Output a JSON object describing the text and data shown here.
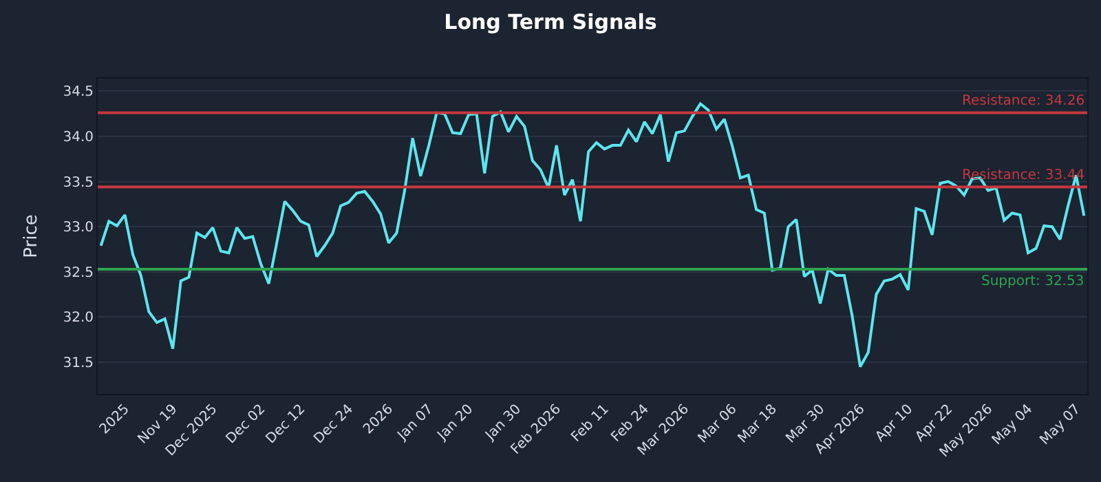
{
  "chart_data": {
    "type": "line",
    "title": "Long Term Signals",
    "ylabel": "Price",
    "categories": [
      null,
      null,
      null,
      "2025",
      null,
      null,
      null,
      null,
      null,
      "Nov 19",
      null,
      null,
      null,
      null,
      "Dec 2025",
      null,
      null,
      null,
      null,
      null,
      "Dec 02",
      null,
      null,
      null,
      null,
      "Dec 12",
      null,
      null,
      null,
      null,
      null,
      "Dec 24",
      null,
      null,
      null,
      null,
      "2026",
      null,
      null,
      null,
      null,
      "Jan 07",
      null,
      null,
      null,
      null,
      "Jan 20",
      null,
      null,
      null,
      null,
      null,
      "Jan 30",
      null,
      null,
      null,
      null,
      "Feb 2026",
      null,
      null,
      null,
      null,
      null,
      "Feb 11",
      null,
      null,
      null,
      null,
      "Feb 24",
      null,
      null,
      null,
      null,
      "Mar 2026",
      null,
      null,
      null,
      null,
      null,
      "Mar 06",
      null,
      null,
      null,
      null,
      "Mar 18",
      null,
      null,
      null,
      null,
      null,
      "Mar 30",
      null,
      null,
      null,
      null,
      "Apr 2026",
      null,
      null,
      null,
      null,
      null,
      "Apr 10",
      null,
      null,
      null,
      null,
      "Apr 22",
      null,
      null,
      null,
      null,
      "May 2026",
      null,
      null,
      null,
      null,
      "May 04",
      null,
      null,
      null,
      null,
      null,
      "May 07",
      null
    ],
    "series": [
      {
        "color": "#5ce6ee",
        "values": [
          32.79,
          33.06,
          33.01,
          33.13,
          32.69,
          32.46,
          32.06,
          31.94,
          31.98,
          31.65,
          32.4,
          32.44,
          32.93,
          32.88,
          32.99,
          32.73,
          32.71,
          32.99,
          32.87,
          32.89,
          32.59,
          32.37,
          32.82,
          33.28,
          33.18,
          33.06,
          33.02,
          32.67,
          32.79,
          32.93,
          33.23,
          33.27,
          33.37,
          33.39,
          33.28,
          33.14,
          32.82,
          32.93,
          33.4,
          33.98,
          33.56,
          33.89,
          34.26,
          34.25,
          34.04,
          34.03,
          34.24,
          34.25,
          33.59,
          34.22,
          34.27,
          34.05,
          34.22,
          34.11,
          33.73,
          33.63,
          33.43,
          33.9,
          33.35,
          33.52,
          33.06,
          33.83,
          33.93,
          33.86,
          33.9,
          33.9,
          34.07,
          33.94,
          34.16,
          34.03,
          34.24,
          33.72,
          34.04,
          34.06,
          34.22,
          34.36,
          34.29,
          34.08,
          34.19,
          33.89,
          33.54,
          33.57,
          33.19,
          33.15,
          32.52,
          32.54,
          33.0,
          33.08,
          32.45,
          32.52,
          32.15,
          32.53,
          32.46,
          32.46,
          32.01,
          31.45,
          31.61,
          32.25,
          32.4,
          32.42,
          32.47,
          32.3,
          33.2,
          33.17,
          32.91,
          33.48,
          33.5,
          33.45,
          33.35,
          33.53,
          33.54,
          33.4,
          33.43,
          33.07,
          33.15,
          33.13,
          32.71,
          32.76,
          33.01,
          33.0,
          32.86,
          33.23,
          33.57,
          33.12
        ]
      }
    ],
    "ylim": [
      31.15,
      34.64
    ],
    "yticks": [
      31.5,
      {
        "value": 32,
        "label": "32.0"
      },
      32.5,
      {
        "value": 33,
        "label": "33.0"
      },
      33.5,
      {
        "value": 34,
        "label": "34.0"
      },
      34.5
    ],
    "grid": "y",
    "marker": "none",
    "line_style": "solid",
    "ref_lines": [
      {
        "axis": "y",
        "value": 34.26,
        "label": "Resistance: 34.26",
        "color": "#c4393d"
      },
      {
        "axis": "y",
        "value": 33.44,
        "label": "Resistance: 33.44",
        "color": "#c4393d"
      },
      {
        "axis": "y",
        "value": 32.53,
        "label": "Support: 32.53",
        "color": "#2ea44f"
      }
    ]
  }
}
